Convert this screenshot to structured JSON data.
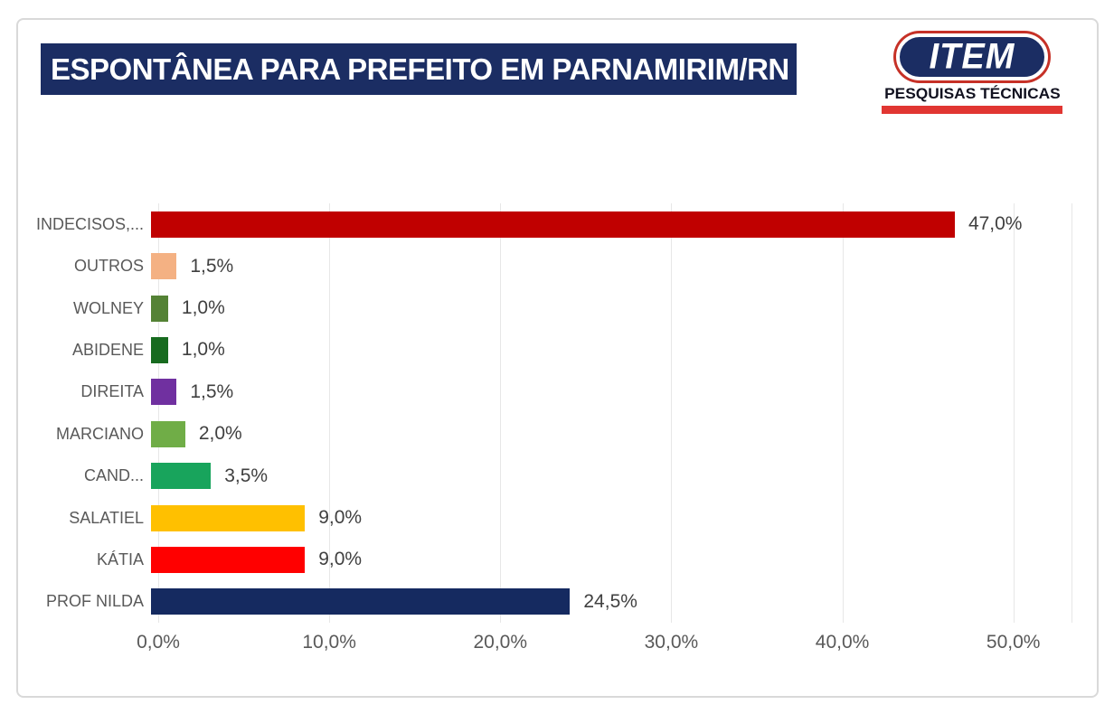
{
  "page": {
    "background": "#FFFFFF",
    "frame_border_color": "#D9D9D9"
  },
  "header": {
    "title": "ESPONTÂNEA PARA PREFEITO EM PARNAMIRIM/RN",
    "title_bg": "#1B2D63",
    "title_color": "#FFFFFF",
    "logo": {
      "brand": "ITEM",
      "tagline": "PESQUISAS TÉCNICAS",
      "pill_bg": "#1B2D63",
      "ring_color": "#C63127",
      "underline_color": "#E13632"
    }
  },
  "chart_data": {
    "type": "bar",
    "orientation": "horizontal",
    "title": "ESPONTÂNEA PARA PREFEITO EM PARNAMIRIM/RN",
    "categories": [
      "INDECISOS,...",
      "OUTROS",
      "WOLNEY",
      "ABIDENE",
      "DIREITA",
      "MARCIANO",
      "CAND...",
      "SALATIEL",
      "KÁTIA",
      "PROF NILDA"
    ],
    "values": [
      47.0,
      1.5,
      1.0,
      1.0,
      1.5,
      2.0,
      3.5,
      9.0,
      9.0,
      24.5
    ],
    "value_labels": [
      "47,0%",
      "1,5%",
      "1,0%",
      "1,0%",
      "1,5%",
      "2,0%",
      "3,5%",
      "9,0%",
      "9,0%",
      "24,5%"
    ],
    "bar_colors": [
      "#C00000",
      "#F4B183",
      "#548235",
      "#176B1F",
      "#7030A0",
      "#70AD47",
      "#18A45C",
      "#FFC000",
      "#FF0000",
      "#152A60"
    ],
    "xlabel": "",
    "ylabel": "",
    "xlim": [
      0,
      50
    ],
    "x_ticks": [
      0,
      10,
      20,
      30,
      40,
      50
    ],
    "x_tick_labels": [
      "0,0%",
      "10,0%",
      "20,0%",
      "30,0%",
      "40,0%",
      "50,0%"
    ],
    "grid": true,
    "legend": false,
    "label_color": "#595959",
    "value_label_color": "#404040",
    "gridline_color": "#E7E7E7"
  }
}
